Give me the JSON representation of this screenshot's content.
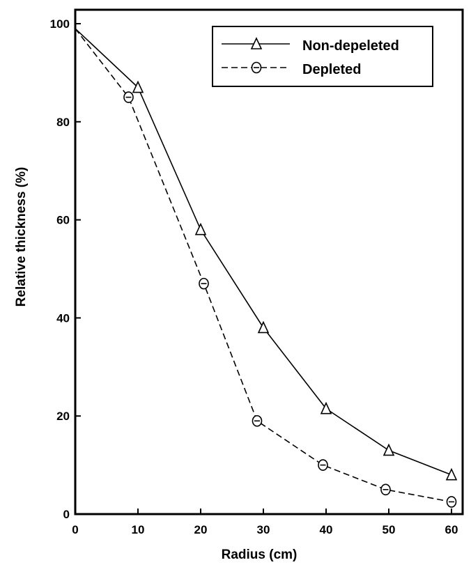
{
  "chart_data": {
    "type": "line",
    "title": "",
    "xlabel": "Radius (cm)",
    "ylabel": "Relative thickness (%)",
    "xlim": [
      0,
      60
    ],
    "ylim": [
      0,
      100
    ],
    "xticks": [
      0,
      10,
      20,
      30,
      40,
      50,
      60
    ],
    "yticks": [
      0,
      20,
      40,
      60,
      80,
      100
    ],
    "grid": false,
    "legend_position": "top-right",
    "series": [
      {
        "name": "Non-depeleted",
        "line_style": "solid",
        "marker": "triangle",
        "x": [
          0,
          10,
          20,
          30,
          40,
          50,
          60
        ],
        "y": [
          99,
          87,
          58,
          38,
          21.5,
          13,
          8
        ]
      },
      {
        "name": "Depleted",
        "line_style": "dashed",
        "marker": "circle-theta",
        "x": [
          0,
          8.5,
          20.5,
          29,
          39.5,
          49.5,
          60
        ],
        "y": [
          99,
          85,
          47,
          19,
          10,
          5,
          2.5
        ]
      }
    ]
  }
}
